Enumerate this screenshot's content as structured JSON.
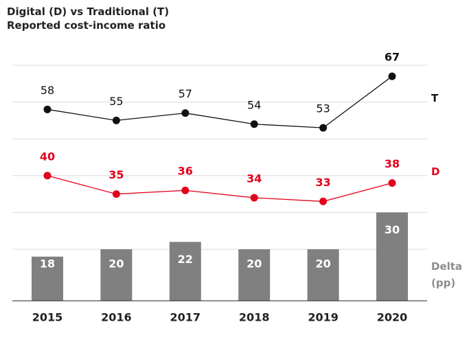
{
  "chart_data": {
    "type": "combo",
    "title": "Digital (D) vs Traditional (T)",
    "subtitle": "Reported cost-income ratio",
    "categories": [
      "2015",
      "2016",
      "2017",
      "2018",
      "2019",
      "2020"
    ],
    "series": [
      {
        "name": "T",
        "type": "line",
        "color": "#111111",
        "values": [
          58,
          55,
          57,
          54,
          53,
          67
        ]
      },
      {
        "name": "D",
        "type": "line",
        "color": "#e3001b",
        "values": [
          40,
          35,
          36,
          34,
          33,
          38
        ]
      },
      {
        "name": "Delta (pp)",
        "type": "bar",
        "color": "#808080",
        "values": [
          18,
          20,
          22,
          20,
          20,
          30
        ]
      }
    ],
    "ylim": [
      6,
      70
    ],
    "yticks": [
      20,
      30,
      40,
      50,
      60,
      70
    ],
    "grid": true
  }
}
